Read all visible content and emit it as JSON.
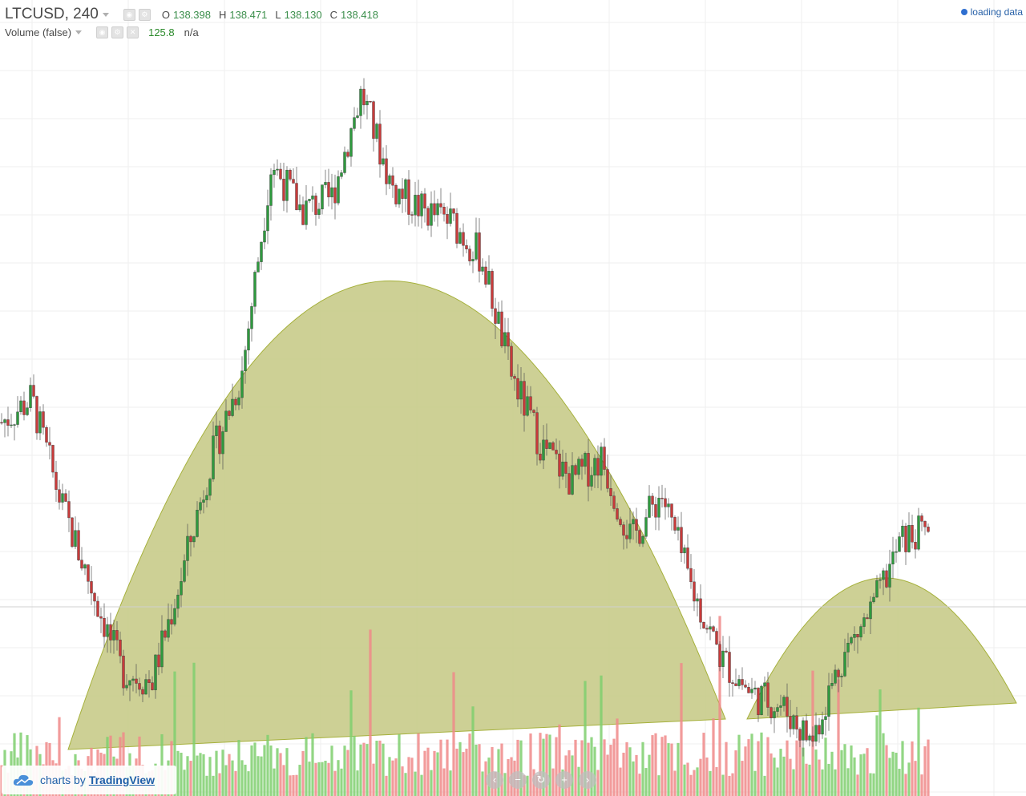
{
  "header": {
    "symbol": "LTCUSD, 240",
    "ohlc": {
      "o_label": "O",
      "o_value": "138.398",
      "h_label": "H",
      "h_value": "138.471",
      "l_label": "L",
      "l_value": "138.130",
      "c_label": "C",
      "c_value": "138.418"
    },
    "volume_label": "Volume (false)",
    "volume_value": "125.8",
    "volume_na": "n/a",
    "status": "loading data"
  },
  "branding": {
    "text": "charts by",
    "link": "TradingView"
  },
  "nav_buttons": [
    "back-icon",
    "zoom-out-icon",
    "reset-icon",
    "zoom-in-icon",
    "forward-icon"
  ],
  "colors": {
    "up": "#2e9a3e",
    "down": "#c83a3a",
    "shape_fill": "#c9cc8c",
    "shape_stroke": "#a5b03a",
    "vol_up": "#7fcf6f",
    "vol_down": "#f08a8a"
  },
  "chart_data": {
    "type": "candlestick",
    "title": "LTCUSD, 240",
    "price_path_approx": [
      146,
      148,
      139,
      132,
      125,
      124,
      133,
      143,
      150,
      168,
      164,
      165,
      174,
      166,
      164,
      163,
      160,
      150,
      144,
      141,
      143,
      136,
      140,
      132,
      126,
      123,
      122,
      119,
      126,
      130,
      136,
      137
    ],
    "annotations": [
      {
        "type": "arc",
        "name": "large arc"
      },
      {
        "type": "arc",
        "name": "small arc"
      }
    ]
  }
}
